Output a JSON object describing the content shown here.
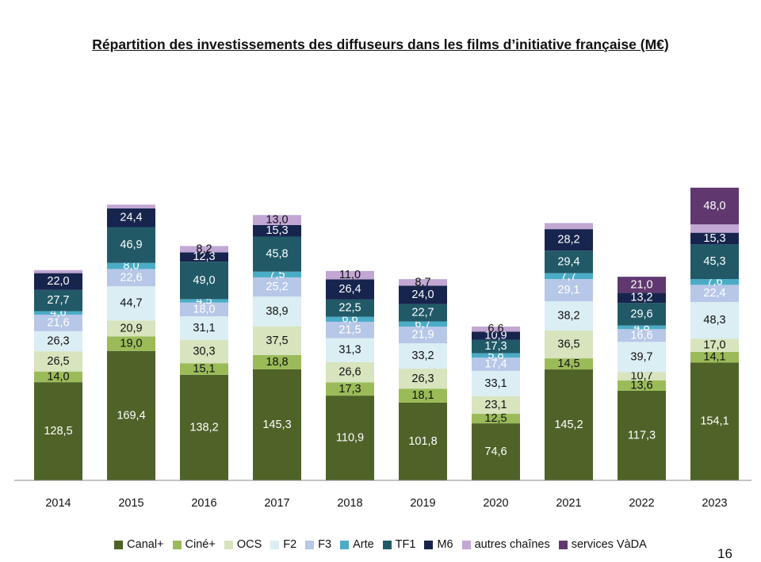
{
  "page": {
    "title": "Répartition des investissements des diffuseurs dans les films d’initiative française (M€)",
    "page_number": "16"
  },
  "chart_data": {
    "type": "bar",
    "stacked": true,
    "title": "Répartition des investissements des diffuseurs dans les films d’initiative française (M€)",
    "categories": [
      "2014",
      "2015",
      "2016",
      "2017",
      "2018",
      "2019",
      "2020",
      "2021",
      "2022",
      "2023"
    ],
    "ylim": [
      0,
      525
    ],
    "grid": false,
    "legend_position": "bottom",
    "series": [
      {
        "name": "Canal+",
        "color": "#4f6228",
        "label_color": "light",
        "values": [
          128.5,
          169.4,
          138.2,
          145.3,
          110.9,
          101.8,
          74.6,
          145.2,
          117.3,
          154.1
        ],
        "labels": [
          "128,5",
          "169,4",
          "138,2",
          "145,3",
          "110,9",
          "101,8",
          "74,6",
          "145,2",
          "117,3",
          "154,1"
        ]
      },
      {
        "name": "Ciné+",
        "color": "#9bbb59",
        "label_color": "dark",
        "values": [
          14.0,
          19.0,
          15.1,
          18.8,
          17.3,
          18.1,
          12.5,
          14.5,
          13.6,
          14.1
        ],
        "labels": [
          "14,0",
          "19,0",
          "15,1",
          "18,8",
          "17,3",
          "18,1",
          "12,5",
          "14,5",
          "13,6",
          "14,1"
        ]
      },
      {
        "name": "OCS",
        "color": "#d7e4bd",
        "label_color": "dark",
        "values": [
          26.5,
          20.9,
          30.3,
          37.5,
          26.6,
          26.3,
          23.1,
          36.5,
          10.7,
          17.0
        ],
        "labels": [
          "26,5",
          "20,9",
          "30,3",
          "37,5",
          "26,6",
          "26,3",
          "23,1",
          "36,5",
          "10,7",
          "17,0"
        ]
      },
      {
        "name": "F2",
        "color": "#dbeef4",
        "label_color": "dark",
        "values": [
          26.3,
          44.7,
          31.1,
          38.9,
          31.3,
          33.2,
          33.1,
          38.2,
          39.7,
          48.3
        ],
        "labels": [
          "26,3",
          "44,7",
          "31,1",
          "38,9",
          "31,3",
          "33,2",
          "33,1",
          "38,2",
          "39,7",
          "48,3"
        ]
      },
      {
        "name": "F3",
        "color": "#b7c7e7",
        "label_color": "light",
        "values": [
          21.6,
          22.6,
          18.0,
          25.2,
          21.5,
          21.9,
          17.4,
          29.1,
          16.6,
          22.4
        ],
        "labels": [
          "21,6",
          "22,6",
          "18,0",
          "25,2",
          "21,5",
          "21,9",
          "17,4",
          "29,1",
          "16,6",
          "22,4"
        ]
      },
      {
        "name": "Arte",
        "color": "#4bacc6",
        "label_color": "light",
        "values": [
          4.6,
          8.0,
          4.5,
          7.5,
          6.6,
          6.7,
          5.8,
          7.7,
          4.8,
          7.6
        ],
        "labels": [
          "4,6",
          "8,0",
          "4,5",
          "7,5",
          "6,6",
          "6,7",
          "5,8",
          "7,7",
          "4,8",
          "7,6"
        ]
      },
      {
        "name": "TF1",
        "color": "#215967",
        "label_color": "light",
        "values": [
          27.7,
          46.9,
          49.0,
          45.8,
          22.5,
          22.7,
          17.3,
          29.4,
          29.6,
          45.3
        ],
        "labels": [
          "27,7",
          "46,9",
          "49,0",
          "45,8",
          "22,5",
          "22,7",
          "17,3",
          "29,4",
          "29,6",
          "45,3"
        ]
      },
      {
        "name": "M6",
        "color": "#17244d",
        "label_color": "light",
        "values": [
          22.0,
          24.4,
          12.3,
          15.3,
          26.4,
          24.0,
          10.9,
          28.2,
          13.2,
          15.3
        ],
        "labels": [
          "22,0",
          "24,4",
          "12,3",
          "15,3",
          "26,4",
          "24,0",
          "10,9",
          "28,2",
          "13,2",
          "15,3"
        ]
      },
      {
        "name": "autres chaînes",
        "color": "#c2a7d4",
        "label_color": "dark",
        "values": [
          4.0,
          5.0,
          8.2,
          13.0,
          11.0,
          8.7,
          6.6,
          8.0,
          0,
          11.0
        ],
        "labels": [
          "",
          "",
          "8,2",
          "13,0",
          "11,0",
          "8,7",
          "6,6",
          "",
          "",
          ""
        ]
      },
      {
        "name": "services VàDA",
        "color": "#60386f",
        "label_color": "light",
        "values": [
          0,
          0,
          0,
          0,
          0,
          0,
          0,
          0,
          21.0,
          48.0
        ],
        "labels": [
          "",
          "",
          "",
          "",
          "",
          "",
          "",
          "",
          "21,0",
          "48,0"
        ]
      }
    ]
  }
}
